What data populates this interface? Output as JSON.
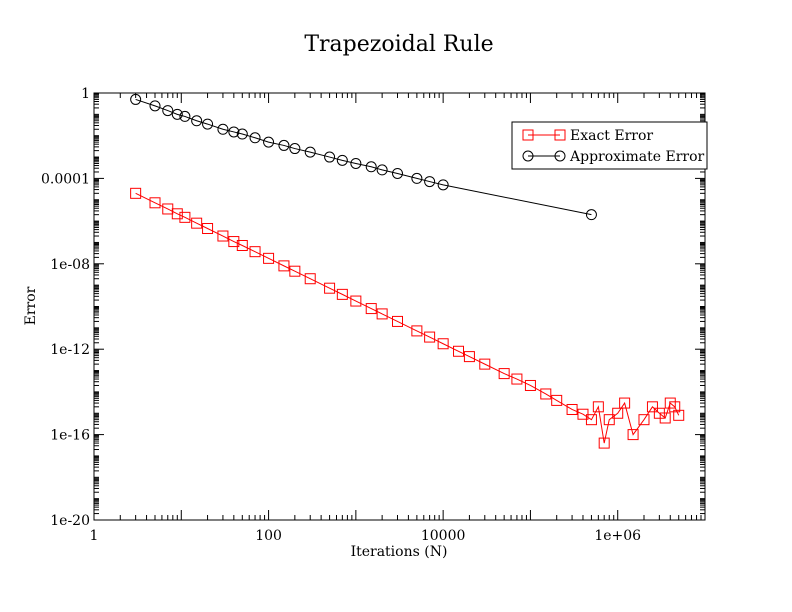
{
  "chart_data": {
    "type": "scatter",
    "title": "Trapezoidal Rule",
    "xlabel": "Iterations (N)",
    "ylabel": "Error",
    "x_scale": "log",
    "y_scale": "log",
    "xlim": [
      1,
      10000000
    ],
    "ylim": [
      1e-20,
      1
    ],
    "x_ticks": [
      1,
      100,
      10000,
      1000000
    ],
    "x_tick_labels": [
      "1",
      "100",
      "10000",
      "1e+06"
    ],
    "y_ticks": [
      1e-20,
      1e-16,
      1e-12,
      1e-08,
      0.0001,
      1
    ],
    "y_tick_labels": [
      "1e-20",
      "1e-16",
      "1e-12",
      "1e-08",
      "0.0001",
      "1"
    ],
    "grid": false,
    "legend_position": "top-right",
    "series": [
      {
        "name": "Exact Error",
        "color": "#ff0000",
        "marker": "square",
        "x": [
          3,
          5,
          7,
          9,
          11,
          15,
          20,
          30,
          40,
          50,
          70,
          100,
          150,
          200,
          300,
          500,
          700,
          1000,
          1500,
          2000,
          3000,
          5000,
          7000,
          10000,
          15000,
          20000,
          30000,
          50000,
          70000,
          100000,
          150000,
          200000,
          300000,
          400000,
          500000,
          600000,
          700000,
          800000,
          1000000,
          1200000,
          1500000,
          2000000,
          2500000,
          3000000,
          3500000,
          4000000,
          4500000,
          5000000
        ],
        "y": [
          2e-05,
          7.2e-06,
          3.7e-06,
          2.2e-06,
          1.5e-06,
          8e-07,
          4.5e-07,
          2e-07,
          1.1e-07,
          7.2e-08,
          3.7e-08,
          1.8e-08,
          8e-09,
          4.5e-09,
          2e-09,
          7.2e-10,
          3.7e-10,
          1.8e-10,
          8e-11,
          4.5e-11,
          2e-11,
          7.2e-12,
          3.7e-12,
          1.8e-12,
          8e-13,
          4.5e-13,
          2e-13,
          7.2e-14,
          4e-14,
          2e-14,
          8e-15,
          4e-15,
          1.5e-15,
          9e-16,
          5e-16,
          2e-15,
          4e-17,
          5e-16,
          1e-15,
          3e-15,
          1e-16,
          5e-16,
          2e-15,
          1e-15,
          6e-16,
          3e-15,
          2e-15,
          8e-16
        ]
      },
      {
        "name": "Approximate Error",
        "color": "#000000",
        "marker": "circle",
        "x": [
          3,
          5,
          7,
          9,
          11,
          15,
          20,
          30,
          40,
          50,
          70,
          100,
          150,
          200,
          300,
          500,
          700,
          1000,
          1500,
          2000,
          3000,
          5000,
          7000,
          10000,
          500000
        ],
        "y": [
          0.5,
          0.25,
          0.15,
          0.1,
          0.08,
          0.05,
          0.035,
          0.02,
          0.015,
          0.012,
          0.008,
          0.005,
          0.0035,
          0.0025,
          0.0017,
          0.001,
          0.0007,
          0.0005,
          0.00035,
          0.00025,
          0.00017,
          0.0001,
          7.1e-05,
          5e-05,
          2e-06
        ]
      }
    ]
  }
}
